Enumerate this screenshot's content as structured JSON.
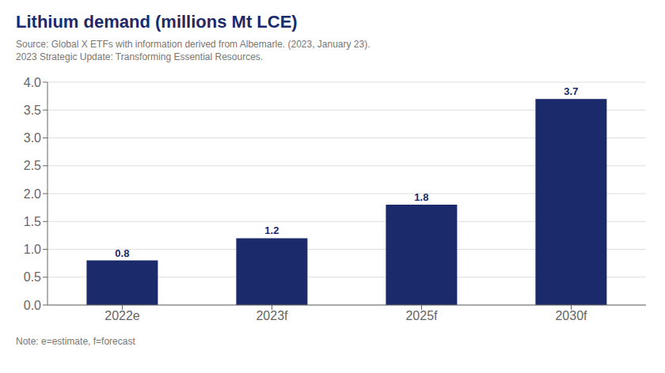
{
  "chart_data": {
    "type": "bar",
    "title": "Lithium demand (millions Mt LCE)",
    "subtitle": [
      "Source: Global X ETFs with information derived from Albemarle. (2023, January 23).",
      "2023 Strategic Update: Transforming Essential Resources."
    ],
    "annotations": [
      "Note: e=estimate, f=forecast"
    ],
    "categories": [
      "2022e",
      "2023f",
      "2025f",
      "2030f"
    ],
    "values": [
      0.8,
      1.2,
      1.8,
      3.7
    ],
    "color": "#1b2a6b",
    "ylim": [
      0,
      4
    ],
    "yticks": [
      {
        "value": 0,
        "label": "0.0"
      },
      0.5,
      {
        "value": 1,
        "label": "1.0"
      },
      1.5,
      {
        "value": 2,
        "label": "2.0"
      },
      2.5,
      {
        "value": 3,
        "label": "3.0"
      },
      3.5,
      {
        "value": 4,
        "label": "4.0"
      }
    ],
    "grid": true,
    "data_labels": true
  }
}
